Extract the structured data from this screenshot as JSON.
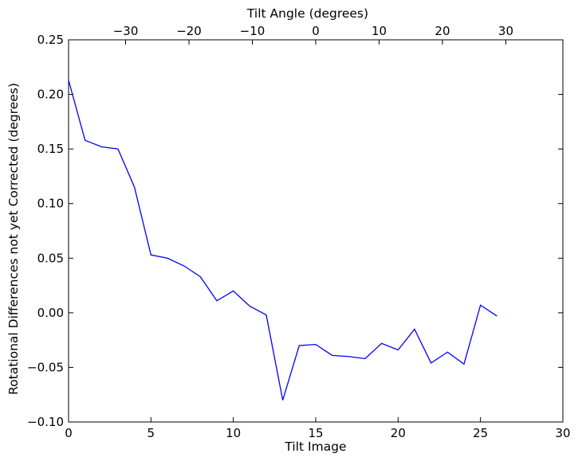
{
  "chart_data": {
    "type": "line",
    "title": "",
    "xlabel": "Tilt Image",
    "ylabel": "Rotational Differences not yet Corrected (degrees)",
    "x2label": "Tilt Angle (degrees)",
    "xlim": [
      0,
      30
    ],
    "ylim": [
      -0.1,
      0.25
    ],
    "x2lim": [
      -39,
      39
    ],
    "grid": false,
    "xticks": [
      0,
      5,
      10,
      15,
      20,
      25,
      30
    ],
    "xtick_labels": [
      "0",
      "5",
      "10",
      "15",
      "20",
      "25",
      "30"
    ],
    "yticks": [
      -0.1,
      -0.05,
      0.0,
      0.05,
      0.1,
      0.15,
      0.2,
      0.25
    ],
    "ytick_labels": [
      "−0.10",
      "−0.05",
      "0.00",
      "0.05",
      "0.10",
      "0.15",
      "0.20",
      "0.25"
    ],
    "x2ticks": [
      -30,
      -20,
      -10,
      0,
      10,
      20,
      30
    ],
    "x2tick_labels": [
      "−30",
      "−20",
      "−10",
      "0",
      "10",
      "20",
      "30"
    ],
    "line_color": "#0000ff",
    "series": [
      {
        "x": [
          0,
          1,
          2,
          3,
          4,
          5,
          6,
          7,
          8,
          9,
          10,
          11,
          12,
          13,
          14,
          15,
          16,
          17,
          18,
          19,
          20,
          21,
          22,
          23,
          24,
          25,
          26
        ],
        "values": [
          0.213,
          0.158,
          0.152,
          0.15,
          0.115,
          0.053,
          0.05,
          0.043,
          0.033,
          0.011,
          0.02,
          0.006,
          -0.002,
          -0.08,
          -0.03,
          -0.029,
          -0.039,
          -0.04,
          -0.042,
          -0.028,
          -0.034,
          -0.015,
          -0.046,
          -0.036,
          -0.047,
          0.007,
          -0.003
        ]
      }
    ]
  }
}
